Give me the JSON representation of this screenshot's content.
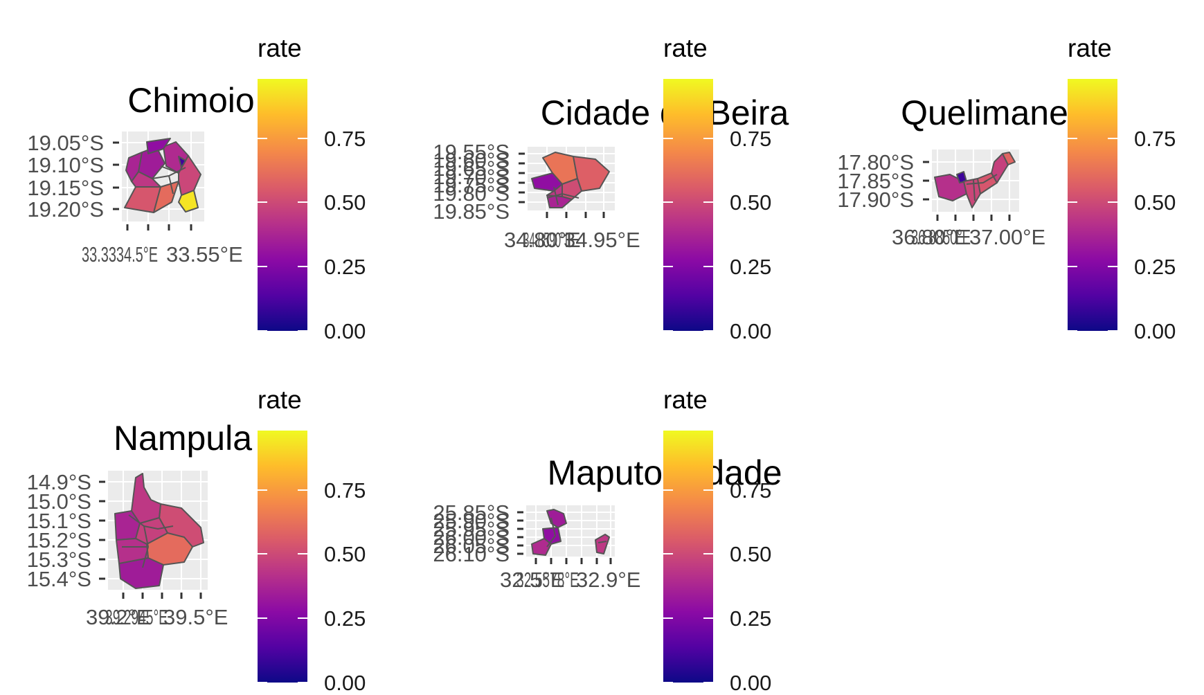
{
  "colors": {
    "scale": [
      "#0d0887",
      "#5302a3",
      "#8b0aa5",
      "#b83289",
      "#db5c68",
      "#f48849",
      "#febd2a",
      "#f0f921"
    ],
    "panel_bg": "#ebebeb",
    "border": "#555555"
  },
  "panels": [
    {
      "id": "chimoio",
      "title": "Chimoio",
      "y_ticks": [
        "19.05°S",
        "19.10°S",
        "19.15°S",
        "19.20°S"
      ],
      "x_ticks": [
        "33.40°E",
        "33.45°E",
        "33.50°E",
        "33.55°E"
      ],
      "x_tick_overlap": "33.3334.5°E",
      "legend_title": "rate",
      "legend_ticks": [
        "0.75",
        "0.50",
        "0.25",
        "0.00"
      ],
      "fill_rates": [
        0.55,
        0.35,
        0.4,
        0.3,
        0.45,
        0.62,
        0.95,
        0.5,
        0.38,
        0.1
      ]
    },
    {
      "id": "beira",
      "title": "Cidade da Beira",
      "y_ticks": [
        "19.55°S",
        "19.60°S",
        "19.65°S",
        "19.70°S",
        "19.75°S",
        "19.80°S",
        "19.85°S"
      ],
      "x_ticks": [
        "34.80°E",
        "34.85°E",
        "34.90°E",
        "34.95°E"
      ],
      "x_tick_overlap": "34.8590°E",
      "legend_title": "rate",
      "legend_ticks": [
        "0.75",
        "0.50",
        "0.25",
        "0.00"
      ],
      "fill_rates": [
        0.65,
        0.58,
        0.52,
        0.3,
        0.38,
        0.45
      ]
    },
    {
      "id": "quelimane",
      "title": "Quelimane",
      "y_ticks": [
        "17.80°S",
        "17.85°S",
        "17.90°S"
      ],
      "x_ticks": [
        "36.80°E",
        "36.85°E",
        "36.90°E",
        "36.95°E",
        "37.00°E"
      ],
      "x_tick_overlap": "36.8850°E",
      "legend_title": "rate",
      "legend_ticks": [
        "0.75",
        "0.50",
        "0.25",
        "0.00"
      ],
      "fill_rates": [
        0.42,
        0.1,
        0.5,
        0.55,
        0.48,
        0.6
      ]
    },
    {
      "id": "nampula",
      "title": "Nampula",
      "y_ticks": [
        "14.9°S",
        "15.0°S",
        "15.1°S",
        "15.2°S",
        "15.3°S",
        "15.4°S"
      ],
      "x_ticks": [
        "39.2°E",
        "39.3°E",
        "39.4°E",
        "39.5°E"
      ],
      "x_tick_overlap": "39.2945°E",
      "legend_title": "rate",
      "legend_ticks": [
        "0.75",
        "0.50",
        "0.25",
        "0.00"
      ],
      "fill_rates": [
        0.52,
        0.45,
        0.62,
        0.38,
        0.35,
        0.48,
        0.42
      ]
    },
    {
      "id": "maputo",
      "title": "Maputo Cidade",
      "y_ticks": [
        "25.85°S",
        "25.90°S",
        "25.95°S",
        "26.00°S",
        "26.05°S",
        "26.10°S"
      ],
      "x_ticks": [
        "32.5°E",
        "32.6°E",
        "32.7°E",
        "32.8°E",
        "32.9°E"
      ],
      "x_tick_overlap": "32.5578°E",
      "legend_title": "rate",
      "legend_ticks": [
        "0.75",
        "0.50",
        "0.25",
        "0.00"
      ],
      "fill_rates": [
        0.35,
        0.3,
        0.4,
        0.45
      ]
    }
  ]
}
